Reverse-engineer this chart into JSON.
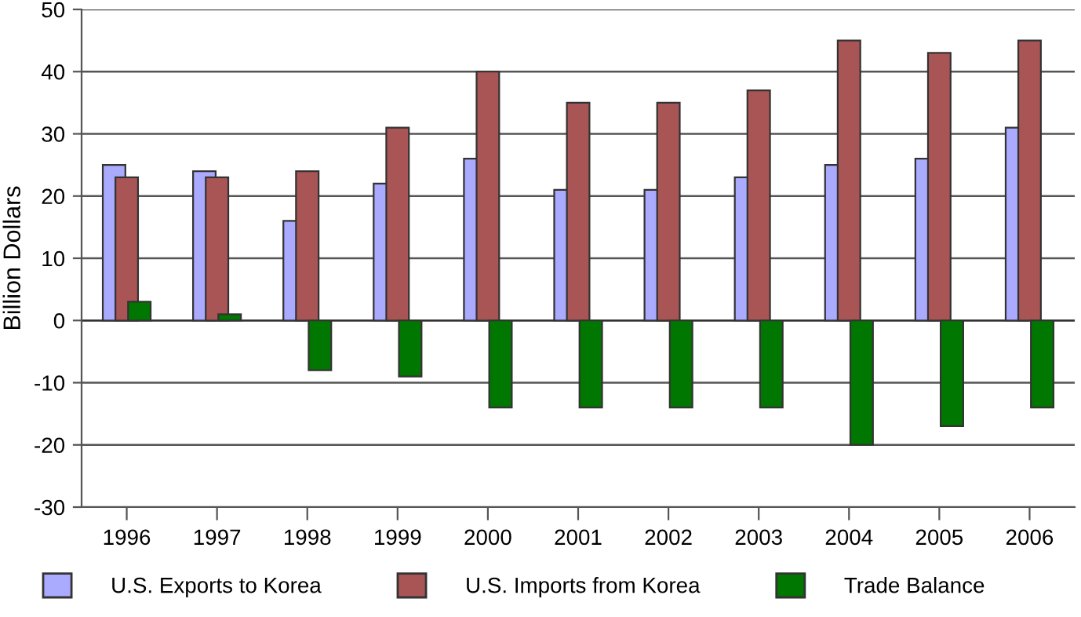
{
  "chart_data": {
    "type": "bar",
    "ylabel": "Billion Dollars",
    "categories": [
      "1996",
      "1997",
      "1998",
      "1999",
      "2000",
      "2001",
      "2002",
      "2003",
      "2004",
      "2005",
      "2006"
    ],
    "series": [
      {
        "name": "U.S. Exports to Korea",
        "color": "#aaaaff",
        "values": [
          25,
          24,
          16,
          22,
          26,
          21,
          21,
          23,
          25,
          26,
          31
        ]
      },
      {
        "name": "U.S. Imports from Korea",
        "color": "#aa5555",
        "values": [
          23,
          23,
          24,
          31,
          40,
          35,
          35,
          37,
          45,
          43,
          45
        ]
      },
      {
        "name": "Trade Balance",
        "color": "#007700",
        "values": [
          3,
          1,
          -8,
          -9,
          -14,
          -14,
          -14,
          -14,
          -20,
          -17,
          -14
        ]
      }
    ],
    "ylim": [
      -30,
      50
    ],
    "yticks": [
      -30,
      -20,
      -10,
      0,
      10,
      20,
      30,
      40,
      50
    ],
    "grid": "y",
    "legend": "bottom"
  }
}
